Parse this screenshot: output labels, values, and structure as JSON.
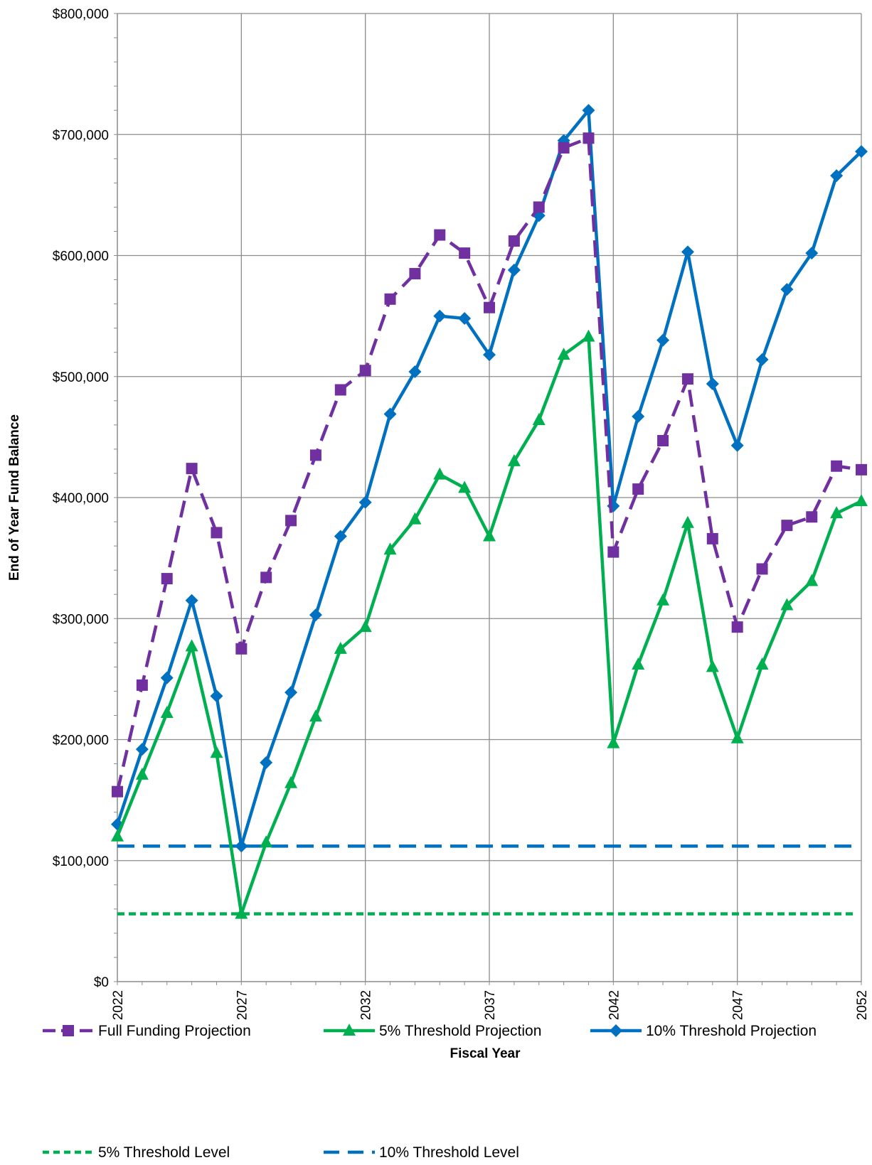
{
  "chart_data": {
    "type": "line",
    "xlabel": "Fiscal Year",
    "ylabel": "End of Year Fund Balance",
    "xlim": [
      2022,
      2052
    ],
    "ylim": [
      0,
      800000
    ],
    "x_tick_labels": [
      "2022",
      "2027",
      "2032",
      "2037",
      "2042",
      "2047",
      "2052"
    ],
    "y_tick_labels": [
      "$0",
      "$100,000",
      "$200,000",
      "$300,000",
      "$400,000",
      "$500,000",
      "$600,000",
      "$700,000",
      "$800,000"
    ],
    "grid": true,
    "legend_position": "bottom",
    "x": [
      2022,
      2023,
      2024,
      2025,
      2026,
      2027,
      2028,
      2029,
      2030,
      2031,
      2032,
      2033,
      2034,
      2035,
      2036,
      2037,
      2038,
      2039,
      2040,
      2041,
      2042,
      2043,
      2044,
      2045,
      2046,
      2047,
      2048,
      2049,
      2050,
      2051,
      2052
    ],
    "series": [
      {
        "name": "Full Funding Projection",
        "color": "#7030a0",
        "style": "dashed",
        "marker": "square",
        "values": [
          157000,
          245000,
          333000,
          424000,
          371000,
          275000,
          334000,
          381000,
          435000,
          489000,
          505000,
          564000,
          585000,
          617000,
          602000,
          557000,
          612000,
          640000,
          689000,
          697000,
          355000,
          407000,
          447000,
          498000,
          366000,
          293000,
          341000,
          377000,
          384000,
          426000,
          423000
        ]
      },
      {
        "name": "5% Threshold Projection",
        "color": "#00b050",
        "style": "solid",
        "marker": "triangle",
        "values": [
          120000,
          171000,
          222000,
          277000,
          189000,
          56000,
          115000,
          164000,
          219000,
          275000,
          293000,
          357000,
          382000,
          419000,
          408000,
          368000,
          430000,
          464000,
          518000,
          533000,
          197000,
          262000,
          315000,
          379000,
          260000,
          201000,
          262000,
          311000,
          331000,
          387000,
          397000
        ]
      },
      {
        "name": "10% Threshold Projection",
        "color": "#0070c0",
        "style": "solid",
        "marker": "diamond",
        "values": [
          130000,
          192000,
          251000,
          315000,
          236000,
          112000,
          181000,
          239000,
          303000,
          368000,
          396000,
          469000,
          504000,
          550000,
          548000,
          518000,
          588000,
          633000,
          695000,
          720000,
          393000,
          467000,
          530000,
          603000,
          494000,
          443000,
          514000,
          572000,
          602000,
          666000,
          686000
        ]
      },
      {
        "name": "5% Threshold Level",
        "color": "#00b050",
        "style": "short-dashed",
        "marker": "none",
        "constant": 56000
      },
      {
        "name": "10% Threshold Level",
        "color": "#0070c0",
        "style": "dashed",
        "marker": "none",
        "constant": 112000
      }
    ]
  }
}
